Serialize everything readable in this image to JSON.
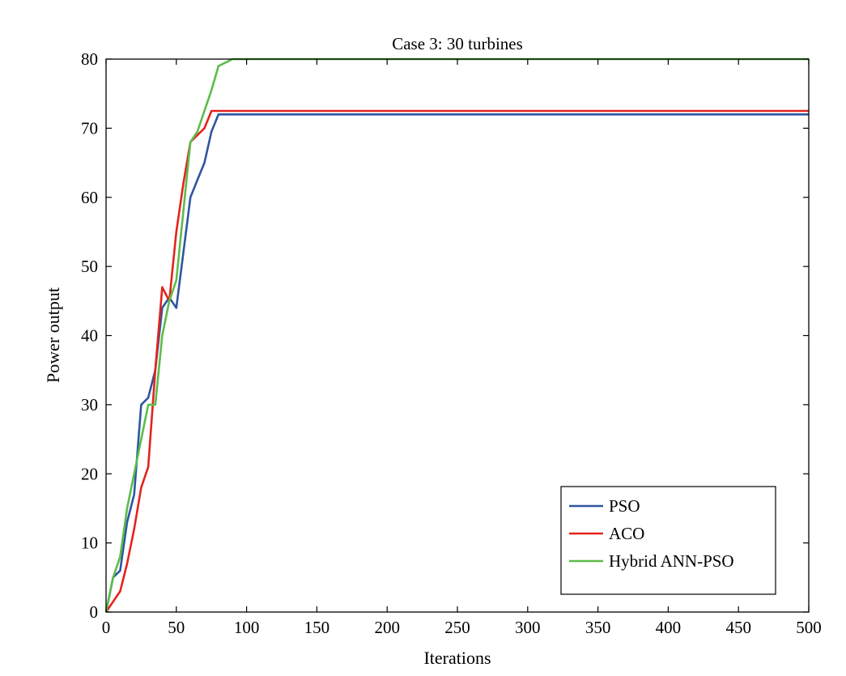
{
  "chart_data": {
    "type": "line",
    "title": "Case 3: 30 turbines",
    "xlabel": "Iterations",
    "ylabel": "Power output",
    "xlim": [
      0,
      500
    ],
    "ylim": [
      0,
      80
    ],
    "xticks": [
      0,
      50,
      100,
      150,
      200,
      250,
      300,
      350,
      400,
      450,
      500
    ],
    "yticks": [
      0,
      10,
      20,
      30,
      40,
      50,
      60,
      70,
      80
    ],
    "grid": false,
    "legend_position": "bottom-right",
    "series": [
      {
        "name": "PSO",
        "color": "#2f55a0",
        "x": [
          0,
          5,
          10,
          15,
          20,
          25,
          30,
          35,
          40,
          45,
          50,
          55,
          60,
          65,
          70,
          75,
          80,
          500
        ],
        "y": [
          0,
          5,
          6,
          13,
          17,
          30,
          31,
          35,
          44,
          45.5,
          44,
          52,
          60,
          62.5,
          65,
          69.5,
          72,
          72
        ]
      },
      {
        "name": "ACO",
        "color": "#e3231e",
        "x": [
          0,
          5,
          10,
          15,
          20,
          25,
          30,
          35,
          40,
          45,
          50,
          55,
          60,
          65,
          70,
          75,
          80,
          500
        ],
        "y": [
          0,
          1.5,
          3,
          7,
          12,
          18,
          21,
          35,
          47,
          45,
          55,
          62,
          68,
          69,
          70,
          72.5,
          72.5,
          72.5
        ]
      },
      {
        "name": "Hybrid ANN-PSO",
        "color": "#5cbc4b",
        "x": [
          0,
          5,
          10,
          15,
          20,
          25,
          30,
          35,
          40,
          45,
          50,
          55,
          60,
          65,
          70,
          75,
          80,
          85,
          90,
          500
        ],
        "y": [
          0,
          5,
          8,
          15,
          20,
          25,
          30,
          30,
          40,
          45,
          48,
          58,
          68,
          69.5,
          72.5,
          75.5,
          79,
          79.5,
          80,
          80
        ]
      }
    ]
  }
}
